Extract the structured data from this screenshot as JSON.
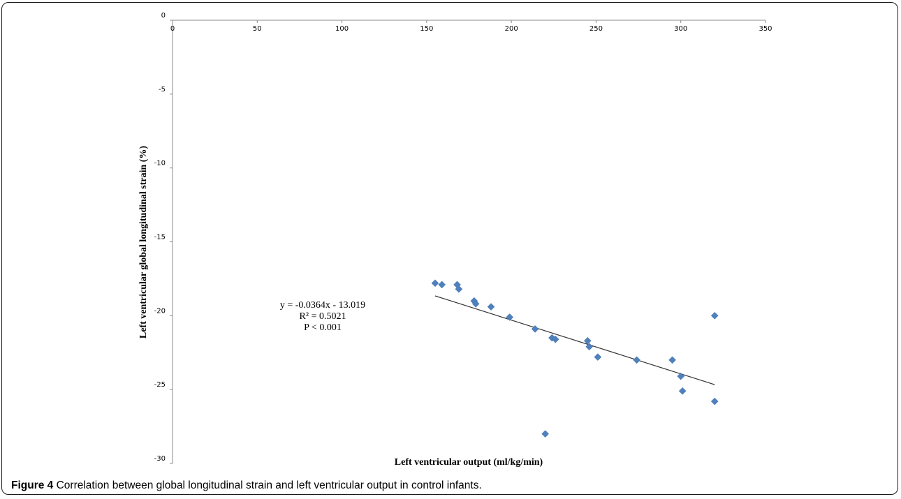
{
  "caption": {
    "label": "Figure 4",
    "text": "Correlation between global longitudinal strain and left ventricular output in control infants."
  },
  "colors": {
    "marker": "#4f81bd",
    "trendline": "#333333",
    "axis": "#888888"
  },
  "chart_data": {
    "type": "scatter",
    "title": "",
    "xlabel": "Left ventricular output (ml/kg/min)",
    "ylabel": "Left ventricular  global longitudinal  strain (%)",
    "xlim": [
      0,
      350
    ],
    "ylim": [
      -30,
      0
    ],
    "xticks": [
      0,
      50,
      100,
      150,
      200,
      250,
      300,
      350
    ],
    "yticks": [
      0,
      -5,
      -10,
      -15,
      -20,
      -25,
      -30
    ],
    "grid": false,
    "legend": "none",
    "x_axis_position": "top (crosses at y = 0)",
    "marker": "diamond",
    "points": [
      {
        "x": 155,
        "y": -17.8
      },
      {
        "x": 159,
        "y": -17.9
      },
      {
        "x": 168,
        "y": -17.9
      },
      {
        "x": 169,
        "y": -18.2
      },
      {
        "x": 178,
        "y": -19.0
      },
      {
        "x": 179,
        "y": -19.2
      },
      {
        "x": 188,
        "y": -19.4
      },
      {
        "x": 199,
        "y": -20.1
      },
      {
        "x": 214,
        "y": -20.9
      },
      {
        "x": 220,
        "y": -28.0
      },
      {
        "x": 224,
        "y": -21.5
      },
      {
        "x": 226,
        "y": -21.6
      },
      {
        "x": 245,
        "y": -21.7
      },
      {
        "x": 246,
        "y": -22.1
      },
      {
        "x": 251,
        "y": -22.8
      },
      {
        "x": 274,
        "y": -23.0
      },
      {
        "x": 295,
        "y": -23.0
      },
      {
        "x": 300,
        "y": -24.1
      },
      {
        "x": 301,
        "y": -25.1
      },
      {
        "x": 320,
        "y": -20.0
      },
      {
        "x": 320,
        "y": -25.8
      }
    ],
    "trendline": {
      "type": "linear",
      "x_range": [
        155,
        320
      ],
      "slope": -0.0364,
      "intercept": -13.019
    },
    "annotations": [
      "y = -0.0364x - 13.019",
      "R² = 0.5021",
      "P < 0.001"
    ]
  }
}
